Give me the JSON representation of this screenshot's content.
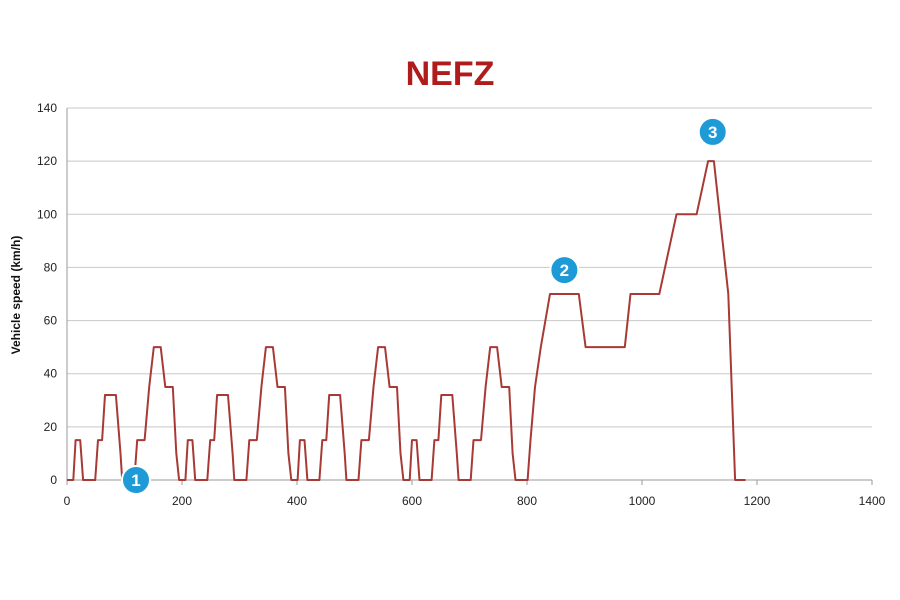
{
  "chart_data": {
    "type": "line",
    "title": "NEFZ",
    "xlabel": "",
    "ylabel": "Vehicle speed (km/h)",
    "xlim": [
      0,
      1400
    ],
    "ylim": [
      0,
      140
    ],
    "xticks": [
      0,
      200,
      400,
      600,
      800,
      1000,
      1200,
      1400
    ],
    "yticks": [
      0,
      20,
      40,
      60,
      80,
      100,
      120,
      140
    ],
    "grid": "horizontal",
    "colors": {
      "line": "#a83a36",
      "title": "#b01c1c",
      "marker": "#1e9ad6",
      "grid": "#c8c8c8"
    },
    "series": [
      {
        "values": [
          [
            0,
            0
          ],
          [
            11,
            0
          ],
          [
            15,
            15
          ],
          [
            23,
            15
          ],
          [
            28,
            0
          ],
          [
            49,
            0
          ],
          [
            54,
            15
          ],
          [
            61,
            15
          ],
          [
            66,
            32
          ],
          [
            85,
            32
          ],
          [
            93,
            10
          ],
          [
            96,
            0
          ],
          [
            117,
            0
          ],
          [
            122,
            15
          ],
          [
            135,
            15
          ],
          [
            143,
            35
          ],
          [
            151,
            50
          ],
          [
            163,
            50
          ],
          [
            171,
            35
          ],
          [
            184,
            35
          ],
          [
            190,
            10
          ],
          [
            195,
            0
          ],
          [
            206,
            0
          ],
          [
            210,
            15
          ],
          [
            218,
            15
          ],
          [
            223,
            0
          ],
          [
            244,
            0
          ],
          [
            249,
            15
          ],
          [
            256,
            15
          ],
          [
            261,
            32
          ],
          [
            280,
            32
          ],
          [
            288,
            10
          ],
          [
            291,
            0
          ],
          [
            312,
            0
          ],
          [
            317,
            15
          ],
          [
            330,
            15
          ],
          [
            338,
            35
          ],
          [
            346,
            50
          ],
          [
            358,
            50
          ],
          [
            366,
            35
          ],
          [
            379,
            35
          ],
          [
            385,
            10
          ],
          [
            390,
            0
          ],
          [
            401,
            0
          ],
          [
            405,
            15
          ],
          [
            413,
            15
          ],
          [
            418,
            0
          ],
          [
            439,
            0
          ],
          [
            444,
            15
          ],
          [
            451,
            15
          ],
          [
            456,
            32
          ],
          [
            475,
            32
          ],
          [
            483,
            10
          ],
          [
            486,
            0
          ],
          [
            507,
            0
          ],
          [
            512,
            15
          ],
          [
            525,
            15
          ],
          [
            533,
            35
          ],
          [
            541,
            50
          ],
          [
            553,
            50
          ],
          [
            561,
            35
          ],
          [
            574,
            35
          ],
          [
            580,
            10
          ],
          [
            585,
            0
          ],
          [
            596,
            0
          ],
          [
            600,
            15
          ],
          [
            608,
            15
          ],
          [
            613,
            0
          ],
          [
            634,
            0
          ],
          [
            639,
            15
          ],
          [
            646,
            15
          ],
          [
            651,
            32
          ],
          [
            670,
            32
          ],
          [
            678,
            10
          ],
          [
            681,
            0
          ],
          [
            702,
            0
          ],
          [
            707,
            15
          ],
          [
            720,
            15
          ],
          [
            728,
            35
          ],
          [
            736,
            50
          ],
          [
            748,
            50
          ],
          [
            756,
            35
          ],
          [
            769,
            35
          ],
          [
            775,
            10
          ],
          [
            780,
            0
          ],
          [
            801,
            0
          ],
          [
            806,
            15
          ],
          [
            814,
            35
          ],
          [
            824,
            50
          ],
          [
            840,
            70
          ],
          [
            890,
            70
          ],
          [
            902,
            50
          ],
          [
            970,
            50
          ],
          [
            980,
            70
          ],
          [
            1030,
            70
          ],
          [
            1060,
            100
          ],
          [
            1095,
            100
          ],
          [
            1115,
            120
          ],
          [
            1125,
            120
          ],
          [
            1150,
            70
          ],
          [
            1162,
            0
          ],
          [
            1180,
            0
          ]
        ]
      }
    ],
    "annotations": [
      {
        "label": "1",
        "x": 120,
        "y": 0
      },
      {
        "label": "2",
        "x": 865,
        "y": 79
      },
      {
        "label": "3",
        "x": 1123,
        "y": 131
      }
    ]
  }
}
